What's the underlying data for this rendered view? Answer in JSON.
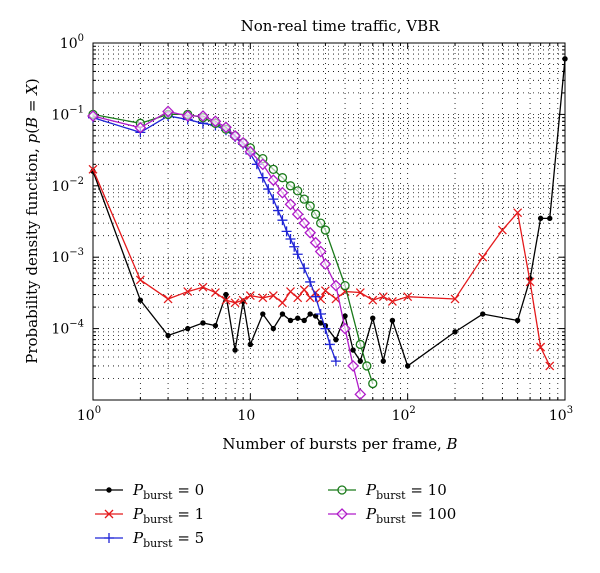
{
  "chart_data": {
    "type": "line",
    "title": "Non-real time traffic, VBR",
    "xlabel": "Number of bursts per frame, B",
    "ylabel": "Probability density function, p(B = X)",
    "xscale": "log",
    "yscale": "log",
    "xlim": [
      1,
      1000
    ],
    "ylim": [
      1e-05,
      1
    ],
    "grid": true,
    "legend_position": "bottom",
    "xticks": [
      {
        "value": 1,
        "base": "10",
        "exp": "0"
      },
      {
        "value": 10,
        "base": "10",
        "exp": ""
      },
      {
        "value": 100,
        "base": "10",
        "exp": "2"
      },
      {
        "value": 1000,
        "base": "10",
        "exp": "3"
      }
    ],
    "yticks": [
      {
        "value": 1,
        "base": "10",
        "exp": "0"
      },
      {
        "value": 0.1,
        "base": "10",
        "exp": "−1"
      },
      {
        "value": 0.01,
        "base": "10",
        "exp": "−2"
      },
      {
        "value": 0.001,
        "base": "10",
        "exp": "−3"
      },
      {
        "value": 0.0001,
        "base": "10",
        "exp": "−4"
      }
    ],
    "series": [
      {
        "name": "P_burst = 0",
        "legend_main": "P",
        "legend_sub": "burst",
        "legend_value": " = 0",
        "color": "#000000",
        "marker": "dot",
        "x": [
          1,
          2,
          3,
          4,
          5,
          6,
          7,
          8,
          9,
          10,
          12,
          14,
          16,
          18,
          20,
          22,
          24,
          26,
          28,
          30,
          35,
          40,
          45,
          50,
          60,
          70,
          80,
          100,
          200,
          300,
          500,
          600,
          700,
          800,
          1000
        ],
        "y": [
          0.016,
          0.00025,
          8e-05,
          0.0001,
          0.00012,
          0.00011,
          0.0003,
          5e-05,
          0.00024,
          6e-05,
          0.00016,
          0.0001,
          0.00016,
          0.00013,
          0.00014,
          0.00013,
          0.00016,
          0.00015,
          0.00012,
          0.00011,
          7e-05,
          0.00015,
          5e-05,
          3.5e-05,
          0.00014,
          3.5e-05,
          0.00013,
          3e-05,
          9e-05,
          0.00016,
          0.00013,
          0.0005,
          0.0035,
          0.0035,
          0.6
        ]
      },
      {
        "name": "P_burst = 1",
        "legend_main": "P",
        "legend_sub": "burst",
        "legend_value": " = 1",
        "color": "#e41a1c",
        "marker": "x",
        "x": [
          1,
          2,
          3,
          4,
          5,
          6,
          7,
          8,
          9,
          10,
          12,
          14,
          16,
          18,
          20,
          22,
          24,
          26,
          28,
          30,
          35,
          40,
          50,
          60,
          70,
          80,
          100,
          200,
          300,
          400,
          500,
          600,
          700,
          800
        ],
        "y": [
          0.017,
          0.00048,
          0.00026,
          0.00033,
          0.00038,
          0.00032,
          0.00025,
          0.00023,
          0.00025,
          0.00029,
          0.00027,
          0.00029,
          0.00023,
          0.00033,
          0.00027,
          0.00035,
          0.00027,
          0.00032,
          0.00026,
          0.00034,
          0.00026,
          0.00033,
          0.00032,
          0.00025,
          0.00028,
          0.00024,
          0.00028,
          0.00026,
          0.001,
          0.0024,
          0.0042,
          0.00045,
          5.5e-05,
          3e-05
        ]
      },
      {
        "name": "P_burst = 5",
        "legend_main": "P",
        "legend_sub": "burst",
        "legend_value": " = 5",
        "color": "#1f24d6",
        "marker": "plus",
        "x": [
          1,
          2,
          3,
          4,
          5,
          6,
          7,
          8,
          9,
          10,
          11,
          12,
          13,
          14,
          15,
          16,
          17,
          18,
          19,
          20,
          22,
          24,
          26,
          28,
          30,
          32,
          35
        ],
        "y": [
          0.09,
          0.056,
          0.095,
          0.085,
          0.075,
          0.07,
          0.06,
          0.048,
          0.038,
          0.028,
          0.02,
          0.013,
          0.009,
          0.0065,
          0.0045,
          0.0033,
          0.0023,
          0.0018,
          0.0014,
          0.0011,
          0.0007,
          0.00045,
          0.00028,
          0.00016,
          0.0001,
          6e-05,
          3.5e-05
        ]
      },
      {
        "name": "P_burst = 10",
        "legend_main": "P",
        "legend_sub": "burst",
        "legend_value": " = 10",
        "color": "#1a7a1a",
        "marker": "circle",
        "x": [
          1,
          2,
          3,
          4,
          5,
          6,
          7,
          8,
          9,
          10,
          12,
          14,
          16,
          18,
          20,
          22,
          24,
          26,
          28,
          30,
          40,
          50,
          55,
          60
        ],
        "y": [
          0.1,
          0.075,
          0.1,
          0.1,
          0.09,
          0.075,
          0.062,
          0.05,
          0.04,
          0.034,
          0.024,
          0.017,
          0.013,
          0.01,
          0.0085,
          0.0065,
          0.0052,
          0.004,
          0.003,
          0.0024,
          0.0004,
          6e-05,
          3e-05,
          1.7e-05
        ]
      },
      {
        "name": "P_burst = 100",
        "legend_main": "P",
        "legend_sub": "burst",
        "legend_value": " = 100",
        "color": "#b01cc9",
        "marker": "diamond",
        "x": [
          1,
          2,
          3,
          4,
          5,
          6,
          7,
          8,
          9,
          10,
          12,
          14,
          16,
          18,
          20,
          22,
          24,
          26,
          28,
          30,
          35,
          40,
          45,
          50
        ],
        "y": [
          0.095,
          0.065,
          0.11,
          0.095,
          0.095,
          0.08,
          0.066,
          0.05,
          0.04,
          0.03,
          0.02,
          0.012,
          0.008,
          0.0055,
          0.004,
          0.003,
          0.0022,
          0.0016,
          0.0012,
          0.0008,
          0.0004,
          0.0001,
          3e-05,
          1.2e-05
        ]
      }
    ]
  }
}
